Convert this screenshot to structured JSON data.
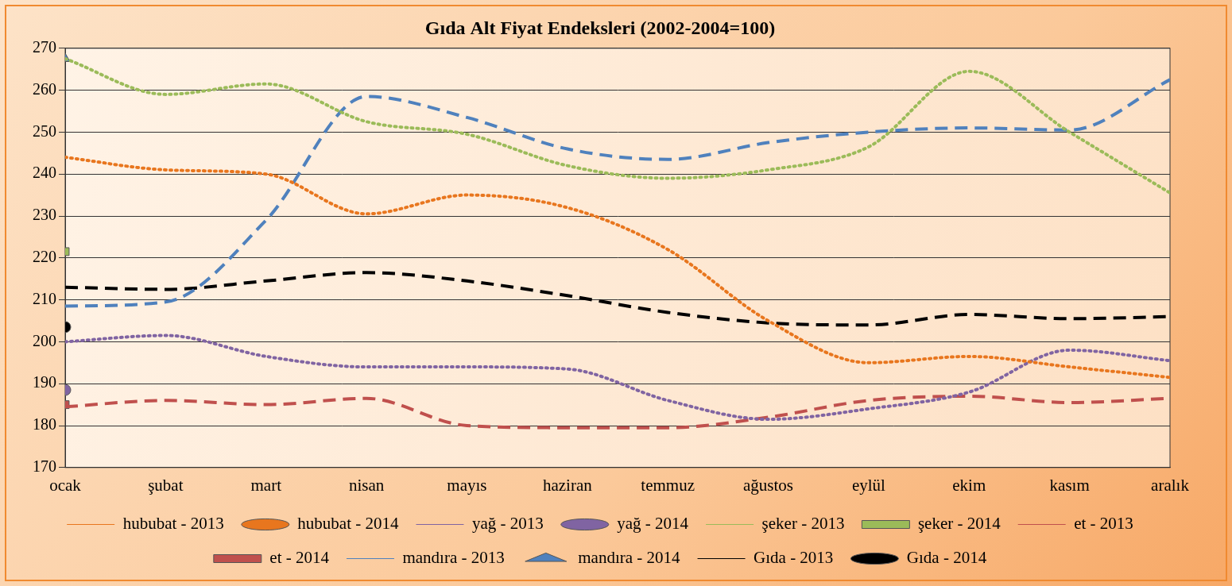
{
  "chart_data": {
    "type": "line",
    "title": "Gıda Alt Fiyat Endeksleri (2002-2004=100)",
    "categories": [
      "ocak",
      "şubat",
      "mart",
      "nisan",
      "mayıs",
      "haziran",
      "temmuz",
      "ağustos",
      "eylül",
      "ekim",
      "kasım",
      "aralık"
    ],
    "ylim": [
      170,
      270
    ],
    "yticks": [
      170,
      180,
      190,
      200,
      210,
      220,
      230,
      240,
      250,
      260,
      270
    ],
    "grid": true,
    "legend": "bottom",
    "series": [
      {
        "name": "hububat - 2013",
        "color": "#e8761e",
        "line_style": "dotted",
        "marker": "none",
        "values": [
          244,
          241,
          240,
          230.5,
          235,
          232,
          222,
          205,
          195,
          196.5,
          194,
          191.5
        ]
      },
      {
        "name": "hububat - 2014",
        "color": "#e8761e",
        "line_style": "solid",
        "marker": "circle",
        "values": [
          null,
          null,
          null,
          null,
          null,
          null,
          null,
          null,
          null,
          null,
          null,
          null
        ]
      },
      {
        "name": "yağ - 2013",
        "color": "#8064a2",
        "line_style": "dotted",
        "marker": "none",
        "values": [
          200,
          201.5,
          196.5,
          194,
          194,
          193.5,
          186,
          181.5,
          184,
          188,
          198,
          195.5
        ]
      },
      {
        "name": "yağ - 2014",
        "color": "#8064a2",
        "line_style": "solid",
        "marker": "circle",
        "values": [
          188.5,
          null,
          null,
          null,
          null,
          null,
          null,
          null,
          null,
          null,
          null,
          null
        ]
      },
      {
        "name": "şeker - 2013",
        "color": "#9bbb59",
        "line_style": "dotted",
        "marker": "none",
        "values": [
          267.5,
          259,
          261.5,
          252.5,
          249.5,
          242,
          239,
          241,
          246.5,
          264.5,
          250,
          235.5
        ]
      },
      {
        "name": "şeker - 2014",
        "color": "#9bbb59",
        "line_style": "solid",
        "marker": "square",
        "values": [
          221.5,
          null,
          null,
          null,
          null,
          null,
          null,
          null,
          null,
          null,
          null,
          null
        ]
      },
      {
        "name": "et - 2013",
        "color": "#c0504d",
        "line_style": "dashed",
        "marker": "none",
        "values": [
          184.5,
          186,
          185,
          186.5,
          180,
          179.5,
          179.5,
          182,
          186,
          187,
          185.5,
          186.5
        ]
      },
      {
        "name": "et - 2014",
        "color": "#c0504d",
        "line_style": "solid",
        "marker": "square",
        "values": [
          185,
          null,
          null,
          null,
          null,
          null,
          null,
          null,
          null,
          null,
          null,
          null
        ]
      },
      {
        "name": "mandıra - 2013",
        "color": "#4f81bd",
        "line_style": "dashed",
        "marker": "none",
        "values": [
          208.5,
          209.5,
          229,
          258.5,
          253.5,
          246,
          243.5,
          247.5,
          250,
          251,
          250.5,
          262.5
        ]
      },
      {
        "name": "mandıra - 2014",
        "color": "#4f81bd",
        "line_style": "solid",
        "marker": "triangle",
        "values": [
          267.5,
          null,
          null,
          null,
          null,
          null,
          null,
          null,
          null,
          null,
          null,
          null
        ]
      },
      {
        "name": "Gıda - 2013",
        "color": "#000000",
        "line_style": "dashed",
        "marker": "none",
        "values": [
          213,
          212.5,
          214.5,
          216.5,
          214.5,
          211,
          207,
          204.5,
          204,
          206.5,
          205.5,
          206
        ]
      },
      {
        "name": "Gıda - 2014",
        "color": "#000000",
        "line_style": "solid",
        "marker": "circle",
        "values": [
          203.5,
          null,
          null,
          null,
          null,
          null,
          null,
          null,
          null,
          null,
          null,
          null
        ]
      }
    ]
  }
}
